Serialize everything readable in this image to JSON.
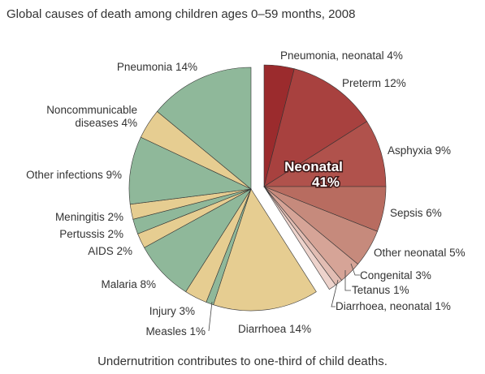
{
  "chart_data": {
    "type": "pie",
    "title": "Global causes of death among children ages 0–59 months, 2008",
    "categories": [
      "Pneumonia, neonatal",
      "Preterm",
      "Asphyxia",
      "Sepsis",
      "Other neonatal",
      "Congenital",
      "Tetanus",
      "Diarrhoea, neonatal",
      "Diarrhoea",
      "Measles",
      "Injury",
      "Malaria",
      "AIDS",
      "Pertussis",
      "Meningitis",
      "Other infections",
      "Noncommunicable diseases",
      "Pneumonia"
    ],
    "values": [
      4,
      12,
      9,
      6,
      5,
      3,
      1,
      1,
      14,
      1,
      3,
      8,
      2,
      2,
      2,
      9,
      4,
      14
    ],
    "value_labels": [
      "4%",
      "12%",
      "9%",
      "6%",
      "5%",
      "3%",
      "1%",
      "1%",
      "14%",
      "1%",
      "3%",
      "8%",
      "2%",
      "2%",
      "2%",
      "9%",
      "4%",
      "14%"
    ],
    "colors": [
      "#9b2b2d",
      "#a8413f",
      "#b0524c",
      "#b86c60",
      "#c68a7c",
      "#d6a497",
      "#e2bdb3",
      "#edd3cc",
      "#e6cd91",
      "#8fb89a",
      "#e6cd91",
      "#8fb89a",
      "#e6cd91",
      "#8fb89a",
      "#e6cd91",
      "#8fb89a",
      "#e6cd91",
      "#8fb89a"
    ],
    "explode": [
      true,
      true,
      true,
      true,
      true,
      true,
      true,
      true,
      false,
      false,
      false,
      false,
      false,
      false,
      false,
      false,
      false,
      false
    ],
    "annotation": {
      "label": "Neonatal",
      "value": "41%"
    },
    "footnote": "Undernutrition contributes to one-third of child deaths."
  }
}
